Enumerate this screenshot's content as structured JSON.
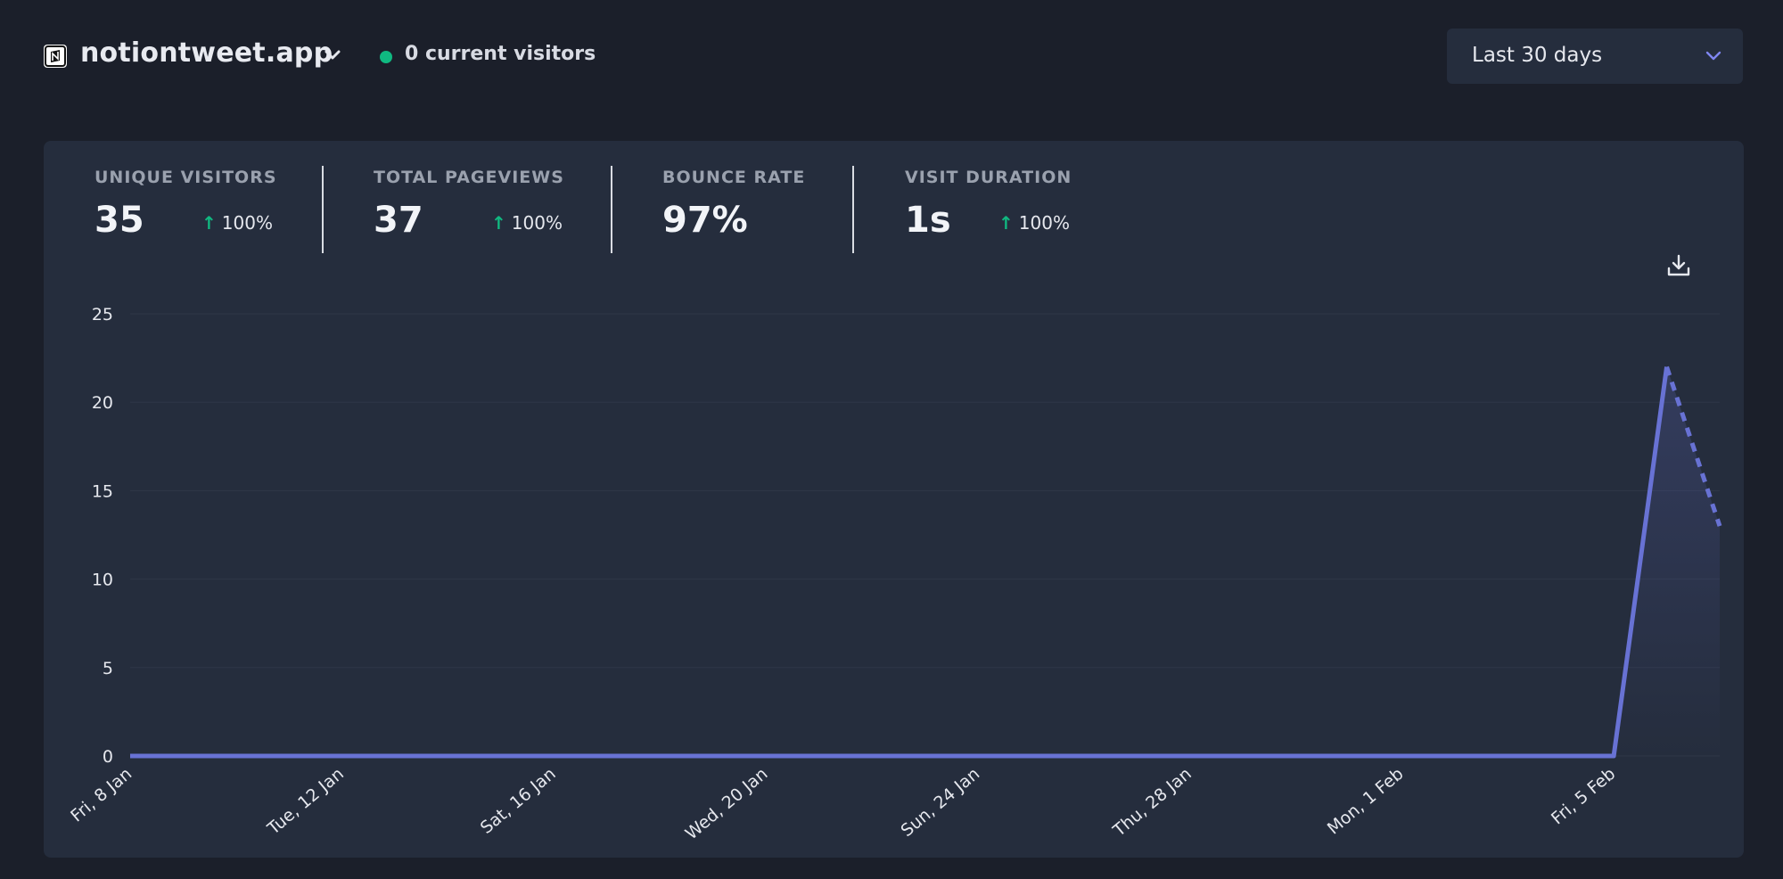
{
  "header": {
    "site_name": "notiontweet.app",
    "current_visitors": "0 current visitors",
    "date_range": "Last 30 days"
  },
  "icons": {
    "site": "notion-logo-icon",
    "site_menu": "chevron-down-icon",
    "live": "live-dot-icon",
    "range_menu": "chevron-down-icon",
    "download": "download-icon"
  },
  "colors": {
    "accent": "#6366f1",
    "line": "#6872d4",
    "positive": "#10b981",
    "background": "#1b1f2a",
    "card": "#252d3d"
  },
  "stats": [
    {
      "label": "UNIQUE VISITORS",
      "value": "35",
      "change": "100%"
    },
    {
      "label": "TOTAL PAGEVIEWS",
      "value": "37",
      "change": "100%"
    },
    {
      "label": "BOUNCE RATE",
      "value": "97%",
      "change": ""
    },
    {
      "label": "VISIT DURATION",
      "value": "1s",
      "change": "100%"
    }
  ],
  "chart_data": {
    "type": "line",
    "title": "",
    "xlabel": "",
    "ylabel": "",
    "ylim": [
      0,
      25
    ],
    "yticks": [
      0,
      5,
      10,
      15,
      20,
      25
    ],
    "grid": true,
    "x_tick_labels": [
      "Fri, 8 Jan",
      "Tue, 12 Jan",
      "Sat, 16 Jan",
      "Wed, 20 Jan",
      "Sun, 24 Jan",
      "Thu, 28 Jan",
      "Mon, 1 Feb",
      "Fri, 5 Feb"
    ],
    "x_tick_every": 4,
    "x": [
      "Fri, 8 Jan",
      "Sat, 9 Jan",
      "Sun, 10 Jan",
      "Mon, 11 Jan",
      "Tue, 12 Jan",
      "Wed, 13 Jan",
      "Thu, 14 Jan",
      "Fri, 15 Jan",
      "Sat, 16 Jan",
      "Sun, 17 Jan",
      "Mon, 18 Jan",
      "Tue, 19 Jan",
      "Wed, 20 Jan",
      "Thu, 21 Jan",
      "Fri, 22 Jan",
      "Sat, 23 Jan",
      "Sun, 24 Jan",
      "Mon, 25 Jan",
      "Tue, 26 Jan",
      "Wed, 27 Jan",
      "Thu, 28 Jan",
      "Fri, 29 Jan",
      "Sat, 30 Jan",
      "Sun, 31 Jan",
      "Mon, 1 Feb",
      "Tue, 2 Feb",
      "Wed, 3 Feb",
      "Thu, 4 Feb",
      "Fri, 5 Feb",
      "Sat, 6 Feb",
      "Sun, 7 Feb"
    ],
    "series": [
      {
        "values": [
          0,
          0,
          0,
          0,
          0,
          0,
          0,
          0,
          0,
          0,
          0,
          0,
          0,
          0,
          0,
          0,
          0,
          0,
          0,
          0,
          0,
          0,
          0,
          0,
          0,
          0,
          0,
          0,
          0,
          22,
          13
        ],
        "incomplete_from_index": 29
      }
    ]
  }
}
